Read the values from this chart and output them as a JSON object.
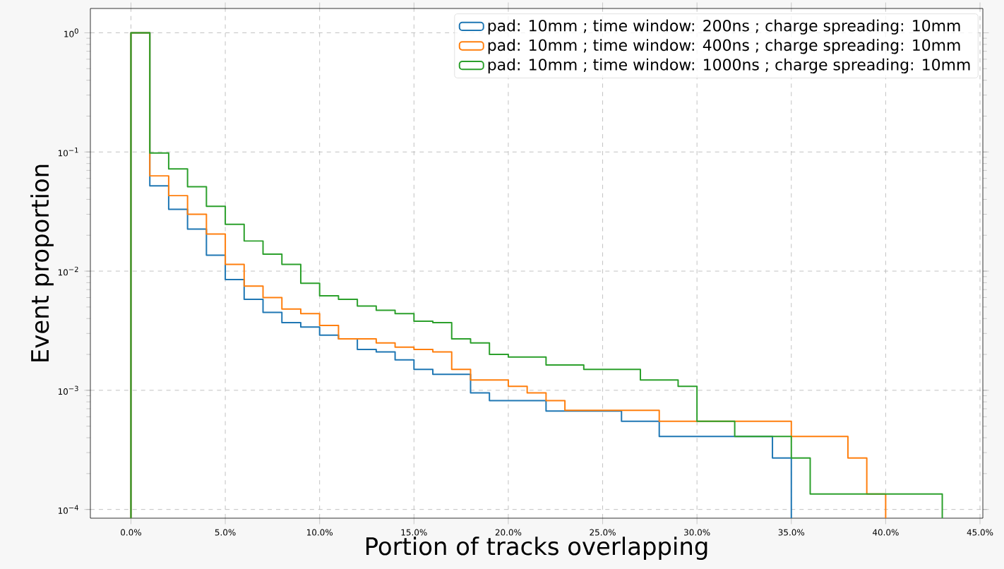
{
  "chart_data": {
    "type": "histogram",
    "xlabel": "Portion of tracks overlapping",
    "ylabel": "Event proportion",
    "bins": [
      0,
      1,
      2,
      3,
      4,
      5,
      6,
      7,
      8,
      9,
      10,
      11,
      12,
      13,
      14,
      15,
      16,
      17,
      18,
      19,
      20,
      21,
      22,
      23,
      24,
      25,
      26,
      27,
      28,
      29,
      30,
      31,
      32,
      33,
      34,
      35,
      36,
      37,
      38,
      39,
      40,
      41,
      42,
      43
    ],
    "series": [
      {
        "name": "pad: 10mm ; time window: 200ns ; charge spreading: 10mm",
        "color": "#1f77b4",
        "bins": [
          0,
          1,
          2,
          3,
          4,
          5,
          6,
          7,
          8,
          9,
          10,
          11,
          12,
          13,
          14,
          15,
          16,
          17,
          18,
          19,
          20,
          21,
          22,
          23,
          24,
          25,
          26,
          27,
          28,
          29,
          30,
          31,
          32,
          33,
          34,
          35
        ],
        "values": [
          1.0,
          0.052,
          0.033,
          0.0225,
          0.0136,
          0.0085,
          0.0058,
          0.0045,
          0.0037,
          0.0034,
          0.0029,
          0.0027,
          0.0022,
          0.0021,
          0.0018,
          0.0015,
          0.00136,
          0.00136,
          0.00095,
          0.00082,
          0.00082,
          0.00082,
          0.00067,
          0.00067,
          0.00067,
          0.00067,
          0.00055,
          0.00055,
          0.00041,
          0.00041,
          0.00041,
          0.00041,
          0.00041,
          0.00041,
          0.00027
        ]
      },
      {
        "name": "pad: 10mm ; time window: 400ns ; charge spreading: 10mm",
        "color": "#ff7f0e",
        "bins": [
          0,
          1,
          2,
          3,
          4,
          5,
          6,
          7,
          8,
          9,
          10,
          11,
          12,
          13,
          14,
          15,
          16,
          17,
          18,
          19,
          20,
          21,
          22,
          23,
          24,
          25,
          26,
          27,
          28,
          29,
          30,
          31,
          32,
          33,
          34,
          35,
          36,
          37,
          38,
          39,
          40
        ],
        "values": [
          1.0,
          0.063,
          0.043,
          0.03,
          0.0205,
          0.0114,
          0.0075,
          0.006,
          0.0048,
          0.0044,
          0.0035,
          0.0027,
          0.0027,
          0.0025,
          0.0023,
          0.0022,
          0.0021,
          0.0015,
          0.00122,
          0.00122,
          0.00108,
          0.00095,
          0.00082,
          0.00068,
          0.00068,
          0.00068,
          0.00068,
          0.00068,
          0.00055,
          0.00055,
          0.00055,
          0.00055,
          0.00055,
          0.00055,
          0.00055,
          0.00041,
          0.00041,
          0.00041,
          0.00027,
          0.000135
        ]
      },
      {
        "name": "pad: 10mm ; time window: 1000ns ; charge spreading: 10mm",
        "color": "#2ca02c",
        "values": [
          1.0,
          0.098,
          0.072,
          0.051,
          0.035,
          0.0247,
          0.0179,
          0.0139,
          0.0114,
          0.0079,
          0.0062,
          0.0058,
          0.0051,
          0.0047,
          0.0044,
          0.0038,
          0.0037,
          0.0027,
          0.0025,
          0.002,
          0.0019,
          0.0019,
          0.00163,
          0.00163,
          0.0015,
          0.0015,
          0.0015,
          0.00122,
          0.00122,
          0.00108,
          0.00055,
          0.00055,
          0.00041,
          0.00041,
          0.00041,
          0.00027,
          0.000135,
          0.000135,
          0.000135,
          0.000135,
          0.000135,
          0.000135,
          0.000135
        ]
      }
    ],
    "log": "y",
    "grid": true,
    "legend": "top right",
    "xlim": [
      -2.15,
      45.15
    ],
    "xticks": [
      {
        "value": 0,
        "label": "0.0%"
      },
      {
        "value": 5,
        "label": "5.0%"
      },
      {
        "value": 10,
        "label": "10.0%"
      },
      {
        "value": 15,
        "label": "15.0%"
      },
      {
        "value": 20,
        "label": "20.0%"
      },
      {
        "value": 25,
        "label": "25.0%"
      },
      {
        "value": 30,
        "label": "30.0%"
      },
      {
        "value": 35,
        "label": "35.0%"
      },
      {
        "value": 40,
        "label": "40.0%"
      },
      {
        "value": 45,
        "label": "45.0%"
      }
    ],
    "ylim": [
      8.45e-05,
      1.6
    ],
    "yticks": [
      {
        "value": 0.0001,
        "label": "10$^{−4}$"
      },
      {
        "value": 0.001,
        "label": "10$^{−3}$"
      },
      {
        "value": 0.01,
        "label": "10$^{−2}$"
      },
      {
        "value": 0.1,
        "label": "10$^{−1}$"
      },
      {
        "value": 1,
        "label": "10$^{0}$"
      }
    ]
  }
}
